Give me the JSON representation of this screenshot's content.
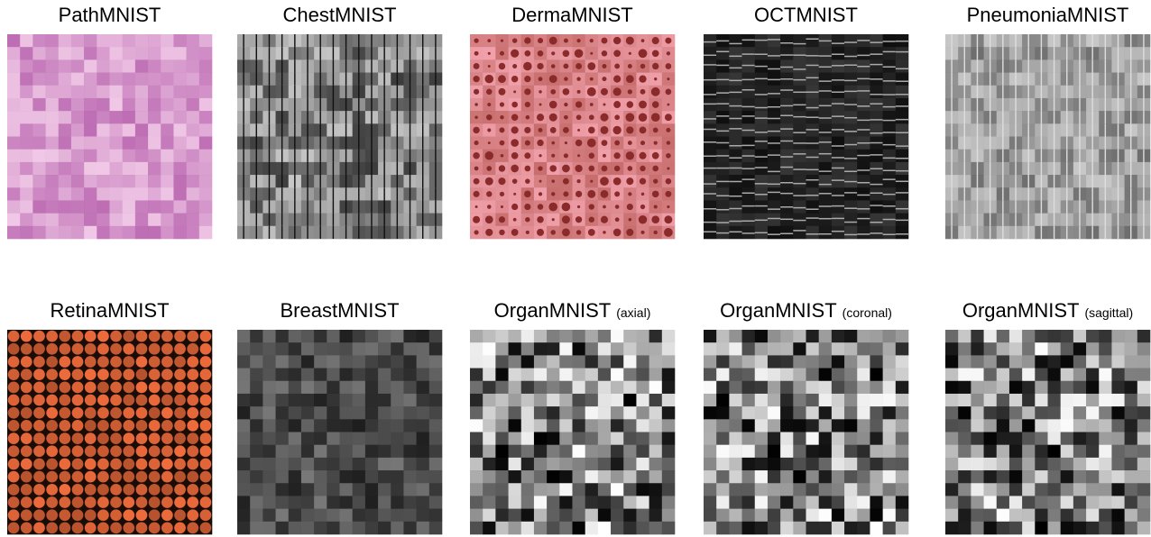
{
  "panels": [
    {
      "title": "PathMNIST"
    },
    {
      "title": "ChestMNIST"
    },
    {
      "title": "DermaMNIST"
    },
    {
      "title": "OCTMNIST"
    },
    {
      "title": "PneumoniaMNIST"
    },
    {
      "title": "RetinaMNIST"
    },
    {
      "title": "BreastMNIST"
    },
    {
      "title": "OrganMNIST",
      "qualifier": "(axial)"
    },
    {
      "title": "OrganMNIST",
      "qualifier": "(coronal)"
    },
    {
      "title": "OrganMNIST",
      "qualifier": "(sagittal)"
    }
  ]
}
